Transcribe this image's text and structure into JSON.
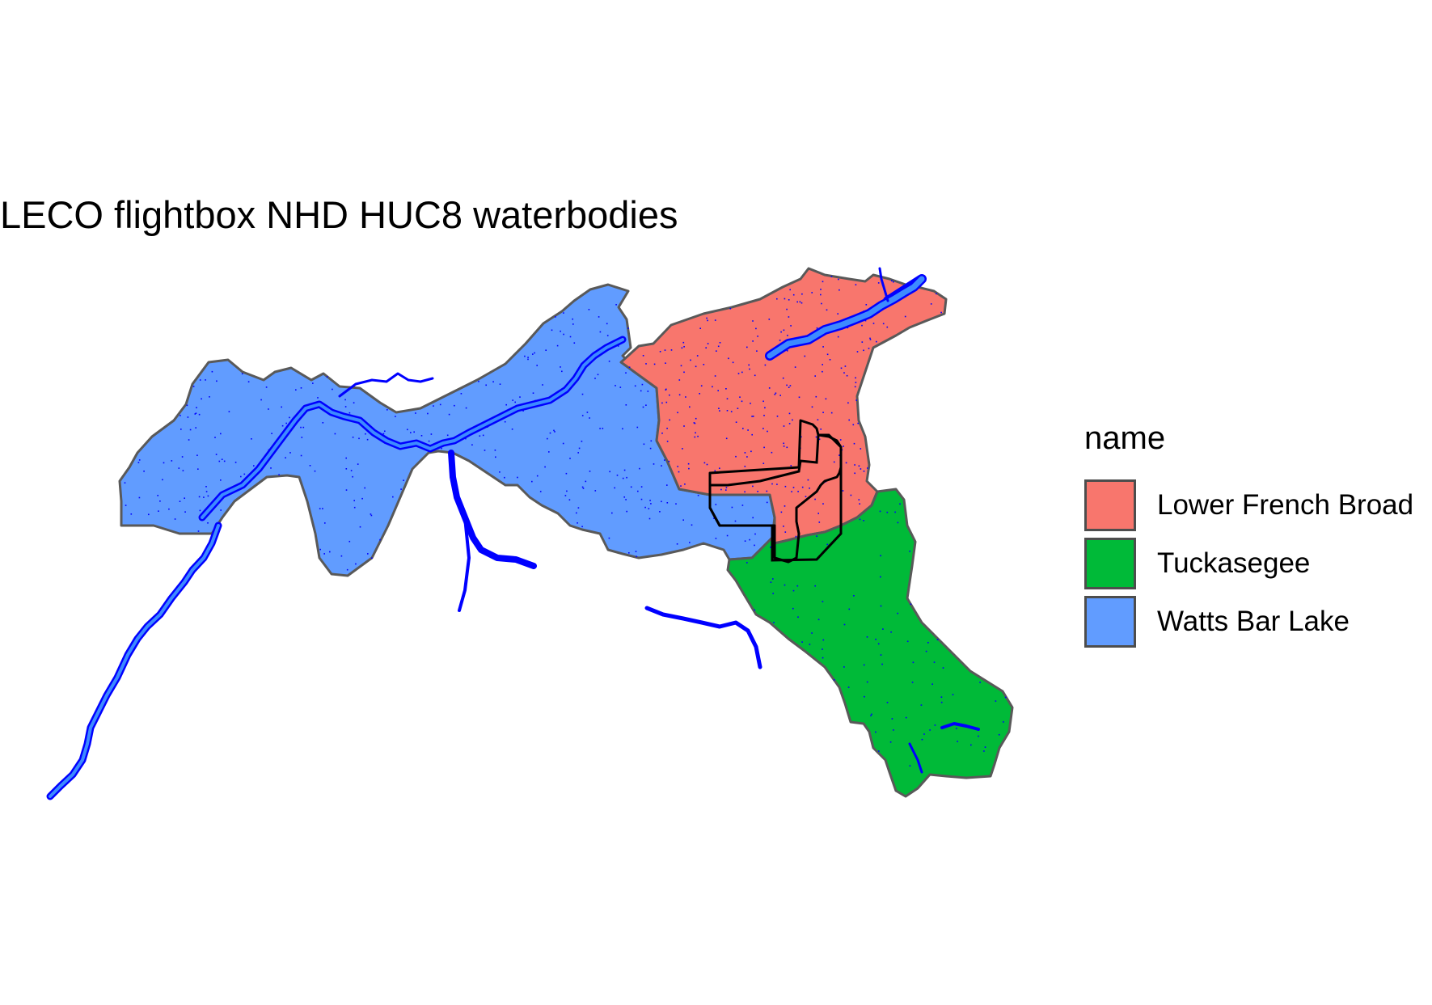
{
  "title": "LECO flightbox NHD HUC8 waterbodies",
  "legend": {
    "title": "name",
    "items": [
      {
        "label": "Lower French Broad",
        "color": "#F8766D"
      },
      {
        "label": "Tuckasegee",
        "color": "#00BA38"
      },
      {
        "label": "Watts Bar Lake",
        "color": "#619CFF"
      }
    ]
  },
  "colors": {
    "boundary": "#595959",
    "water_fill": "#3D8BFF",
    "water_line": "#0000FF",
    "flightbox": "#000000"
  }
}
